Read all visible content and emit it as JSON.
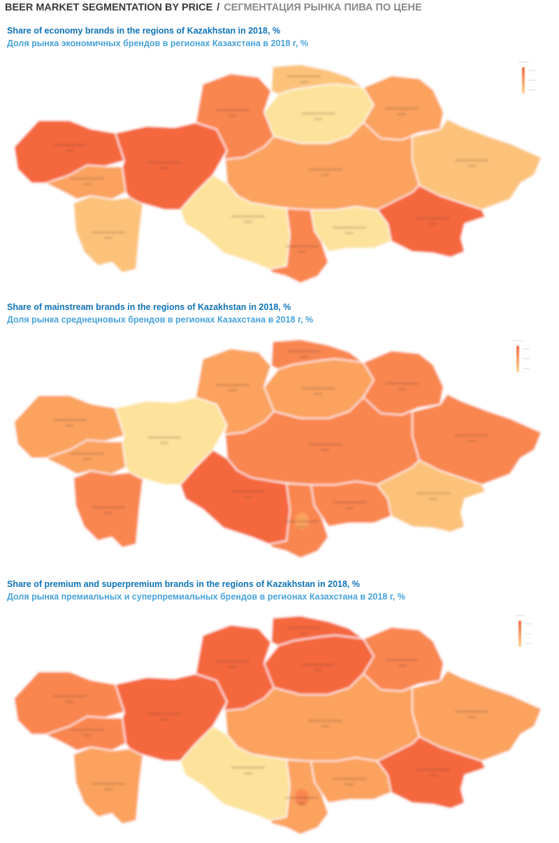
{
  "header": {
    "title_en": "BEER MARKET SEGMENTATION BY PRICE",
    "separator": "/",
    "title_ru": "СЕГМЕНТАЦИЯ РЫНКА ПИВА ПО ЦЕНЕ"
  },
  "colors": {
    "light": "#fde29b",
    "light_mid": "#fcc27a",
    "mid": "#fba25f",
    "mid_dark": "#f98650",
    "dark": "#f5683e"
  },
  "maps": [
    {
      "title_en": "Share of economy brands in the regions of Kazakhstan in 2018, %",
      "title_ru": "Доля рынка экономичных брендов в регионах Казахстана в 2018 г, %",
      "region_colors": {
        "west": "#f5683e",
        "atyrau": "#fba25f",
        "aktobe": "#f5683e",
        "mangystau": "#fcc27a",
        "kostanay": "#f98650",
        "north": "#fcc27a",
        "akmola": "#fde29b",
        "pavlodar": "#fba25f",
        "karaganda": "#fba25f",
        "east": "#fcc27a",
        "kyzylorda": "#fde29b",
        "turkestan": "#f98650",
        "zhambyl": "#fde29b",
        "almaty": "#f5683e",
        "shymkent": "#f98650"
      }
    },
    {
      "title_en": "Share of mainstream brands in the regions of Kazakhstan in 2018, %",
      "title_ru": "Доля рынка среднецновых брендов в регионах Казахстана в 2018 г, %",
      "region_colors": {
        "west": "#fba25f",
        "atyrau": "#fba25f",
        "aktobe": "#fde29b",
        "mangystau": "#f98650",
        "kostanay": "#fba25f",
        "north": "#f98650",
        "akmola": "#fba25f",
        "pavlodar": "#f98650",
        "karaganda": "#f98650",
        "east": "#f98650",
        "kyzylorda": "#f5683e",
        "turkestan": "#f98650",
        "zhambyl": "#f98650",
        "almaty": "#fcc27a",
        "shymkent": "#fba25f"
      }
    },
    {
      "title_en": "Share of premium and superpremium brands in the regions of Kazakhstan in 2018, %",
      "title_ru": "Доля рынка премиальных и суперпремиальных брендов в регионах Казахстана в 2018 г, %",
      "region_colors": {
        "west": "#f98650",
        "atyrau": "#f98650",
        "aktobe": "#f5683e",
        "mangystau": "#fba25f",
        "kostanay": "#f5683e",
        "north": "#f5683e",
        "akmola": "#f5683e",
        "pavlodar": "#f98650",
        "karaganda": "#fba25f",
        "east": "#fba25f",
        "kyzylorda": "#fde29b",
        "turkestan": "#fba25f",
        "zhambyl": "#fba25f",
        "almaty": "#f5683e",
        "shymkent": "#f98650"
      }
    }
  ]
}
